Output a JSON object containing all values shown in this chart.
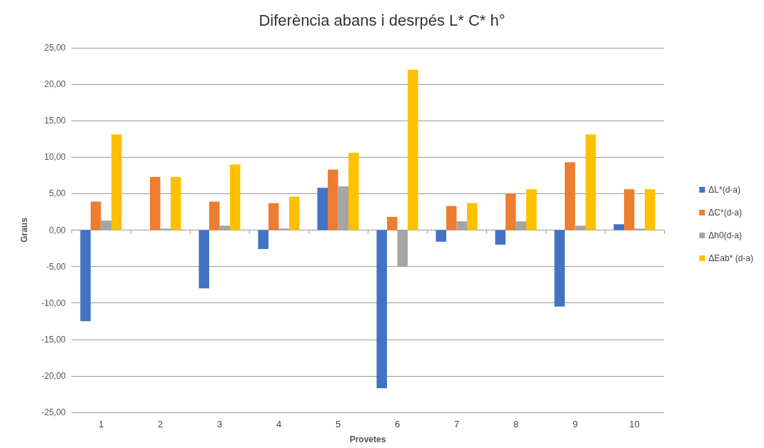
{
  "chart_data": {
    "type": "bar",
    "title": "Diferència abans i desrpés L* C* h°",
    "xlabel": "Provetes",
    "ylabel": "Graus",
    "categories": [
      "1",
      "2",
      "3",
      "4",
      "5",
      "6",
      "7",
      "8",
      "9",
      "10"
    ],
    "series": [
      {
        "name": "ΔL*(d-a)",
        "color": "#4472c4",
        "values": [
          -12.5,
          0,
          -8.0,
          -2.6,
          5.8,
          -21.7,
          -1.6,
          -2.0,
          -10.5,
          0.8
        ]
      },
      {
        "name": "ΔC*(d-a)",
        "color": "#ed7d31",
        "values": [
          3.9,
          7.3,
          3.9,
          3.7,
          8.3,
          1.8,
          3.3,
          5.0,
          9.3,
          5.6
        ]
      },
      {
        "name": "Δh0(d-a)",
        "color": "#a5a5a5",
        "values": [
          1.3,
          0.2,
          0.6,
          0.2,
          6.0,
          -5.0,
          1.2,
          1.2,
          0.6,
          0.2
        ]
      },
      {
        "name": "ΔEab* (d-a)",
        "color": "#ffc000",
        "values": [
          13.1,
          7.3,
          9.0,
          4.6,
          10.6,
          22.0,
          3.7,
          5.6,
          13.1,
          5.6
        ]
      }
    ],
    "ylim": [
      -25,
      25
    ],
    "yticks": [
      {
        "value": -25,
        "label": "-25,00"
      },
      {
        "value": -20,
        "label": "-20,00"
      },
      {
        "value": -15,
        "label": "-15,00"
      },
      {
        "value": -10,
        "label": "-10,00"
      },
      {
        "value": -5,
        "label": "-5,00"
      },
      {
        "value": 0,
        "label": "0,00"
      },
      {
        "value": 5,
        "label": "5,00"
      },
      {
        "value": 10,
        "label": "10,00"
      },
      {
        "value": 15,
        "label": "15,00"
      },
      {
        "value": 20,
        "label": "20,00"
      },
      {
        "value": 25,
        "label": "25,00"
      }
    ],
    "grid": "y",
    "legend": "right"
  }
}
